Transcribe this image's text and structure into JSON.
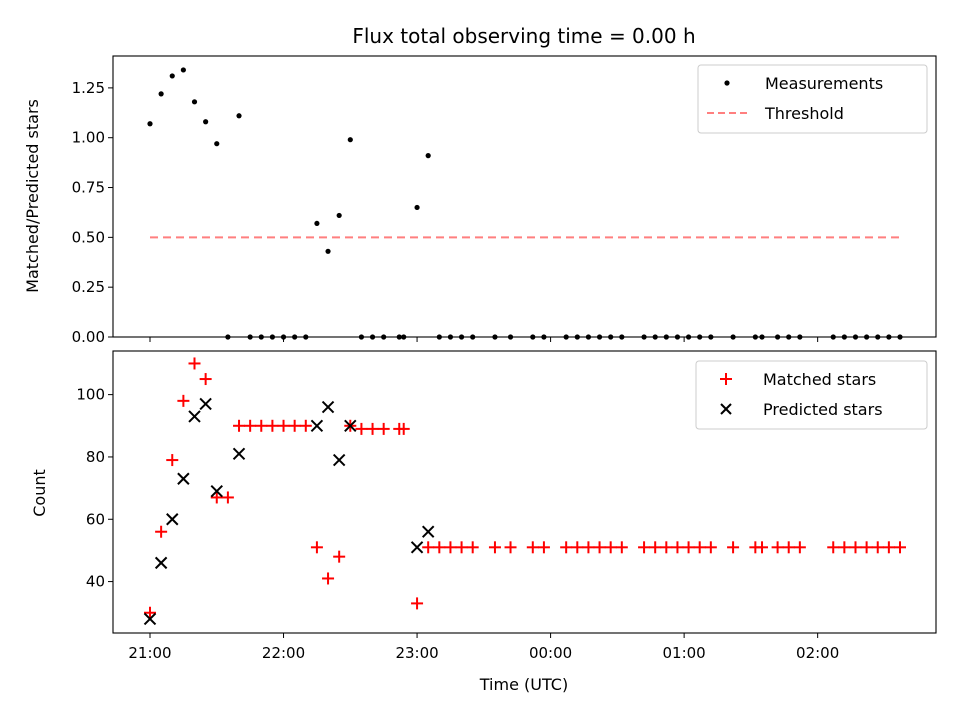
{
  "chart_data": [
    {
      "type": "scatter",
      "title": "Flux total observing time = 0.00 h",
      "ylabel": "Matched/Predicted stars",
      "xlabel": "",
      "ylim": [
        0,
        1.41
      ],
      "yticks": [
        "0.00",
        "0.25",
        "0.50",
        "0.75",
        "1.00",
        "1.25"
      ],
      "ytick_values": [
        0,
        0.25,
        0.5,
        0.75,
        1.0,
        1.25
      ],
      "legend_placement": "upper-right",
      "series": [
        {
          "name": "Measurements",
          "color": "#000000",
          "marker": "dot",
          "points": [
            [
              "21:00",
              1.07
            ],
            [
              "21:05",
              1.22
            ],
            [
              "21:10",
              1.31
            ],
            [
              "21:15",
              1.34
            ],
            [
              "21:20",
              1.18
            ],
            [
              "21:25",
              1.08
            ],
            [
              "21:30",
              0.97
            ],
            [
              "21:35",
              0.0
            ],
            [
              "21:40",
              1.11
            ],
            [
              "21:45",
              0.0
            ],
            [
              "21:50",
              0.0
            ],
            [
              "21:55",
              0.0
            ],
            [
              "22:00",
              0.0
            ],
            [
              "22:05",
              0.0
            ],
            [
              "22:10",
              0.0
            ],
            [
              "22:15",
              0.57
            ],
            [
              "22:20",
              0.43
            ],
            [
              "22:25",
              0.61
            ],
            [
              "22:30",
              0.99
            ],
            [
              "22:35",
              0.0
            ],
            [
              "22:40",
              0.0
            ],
            [
              "22:45",
              0.0
            ],
            [
              "22:52",
              0.0
            ],
            [
              "22:54",
              0.0
            ],
            [
              "23:00",
              0.65
            ],
            [
              "23:05",
              0.91
            ],
            [
              "23:10",
              0.0
            ],
            [
              "23:15",
              0.0
            ],
            [
              "23:20",
              0.0
            ],
            [
              "23:25",
              0.0
            ],
            [
              "23:35",
              0.0
            ],
            [
              "23:42",
              0.0
            ],
            [
              "23:52",
              0.0
            ],
            [
              "23:57",
              0.0
            ],
            [
              "00:07",
              0.0
            ],
            [
              "00:12",
              0.0
            ],
            [
              "00:17",
              0.0
            ],
            [
              "00:22",
              0.0
            ],
            [
              "00:27",
              0.0
            ],
            [
              "00:32",
              0.0
            ],
            [
              "00:42",
              0.0
            ],
            [
              "00:47",
              0.0
            ],
            [
              "00:52",
              0.0
            ],
            [
              "00:57",
              0.0
            ],
            [
              "01:02",
              0.0
            ],
            [
              "01:07",
              0.0
            ],
            [
              "01:12",
              0.0
            ],
            [
              "01:22",
              0.0
            ],
            [
              "01:32",
              0.0
            ],
            [
              "01:35",
              0.0
            ],
            [
              "01:42",
              0.0
            ],
            [
              "01:47",
              0.0
            ],
            [
              "01:52",
              0.0
            ],
            [
              "02:07",
              0.0
            ],
            [
              "02:12",
              0.0
            ],
            [
              "02:17",
              0.0
            ],
            [
              "02:22",
              0.0
            ],
            [
              "02:27",
              0.0
            ],
            [
              "02:32",
              0.0
            ],
            [
              "02:37",
              0.0
            ]
          ]
        },
        {
          "name": "Threshold",
          "color": "#ff7f7f",
          "style": "dashed",
          "points": [
            [
              "21:00",
              0.5
            ],
            [
              "02:37",
              0.5
            ]
          ]
        }
      ]
    },
    {
      "type": "scatter",
      "title": "",
      "ylabel": "Count",
      "xlabel": "Time (UTC)",
      "ylim": [
        23.5,
        114
      ],
      "yticks": [
        "40",
        "60",
        "80",
        "100"
      ],
      "ytick_values": [
        40,
        60,
        80,
        100
      ],
      "xticks": [
        "21:00",
        "22:00",
        "23:00",
        "00:00",
        "01:00",
        "02:00"
      ],
      "xtick_values": [
        "21:00",
        "22:00",
        "23:00",
        "00:00",
        "01:00",
        "02:00"
      ],
      "legend_placement": "upper-right",
      "series": [
        {
          "name": "Matched stars",
          "color": "#ff0000",
          "marker": "plus",
          "points": [
            [
              "21:00",
              30
            ],
            [
              "21:05",
              56
            ],
            [
              "21:10",
              79
            ],
            [
              "21:15",
              98
            ],
            [
              "21:20",
              110
            ],
            [
              "21:25",
              105
            ],
            [
              "21:30",
              67
            ],
            [
              "21:35",
              67
            ],
            [
              "21:40",
              90
            ],
            [
              "21:45",
              90
            ],
            [
              "21:50",
              90
            ],
            [
              "21:55",
              90
            ],
            [
              "22:00",
              90
            ],
            [
              "22:05",
              90
            ],
            [
              "22:10",
              90
            ],
            [
              "22:15",
              51
            ],
            [
              "22:20",
              41
            ],
            [
              "22:25",
              48
            ],
            [
              "22:30",
              90
            ],
            [
              "22:35",
              89
            ],
            [
              "22:40",
              89
            ],
            [
              "22:45",
              89
            ],
            [
              "22:52",
              89
            ],
            [
              "22:54",
              89
            ],
            [
              "23:00",
              33
            ],
            [
              "23:05",
              51
            ],
            [
              "23:10",
              51
            ],
            [
              "23:15",
              51
            ],
            [
              "23:20",
              51
            ],
            [
              "23:25",
              51
            ],
            [
              "23:35",
              51
            ],
            [
              "23:42",
              51
            ],
            [
              "23:52",
              51
            ],
            [
              "23:57",
              51
            ],
            [
              "00:07",
              51
            ],
            [
              "00:12",
              51
            ],
            [
              "00:17",
              51
            ],
            [
              "00:22",
              51
            ],
            [
              "00:27",
              51
            ],
            [
              "00:32",
              51
            ],
            [
              "00:42",
              51
            ],
            [
              "00:47",
              51
            ],
            [
              "00:52",
              51
            ],
            [
              "00:57",
              51
            ],
            [
              "01:02",
              51
            ],
            [
              "01:07",
              51
            ],
            [
              "01:12",
              51
            ],
            [
              "01:22",
              51
            ],
            [
              "01:32",
              51
            ],
            [
              "01:35",
              51
            ],
            [
              "01:42",
              51
            ],
            [
              "01:47",
              51
            ],
            [
              "01:52",
              51
            ],
            [
              "02:07",
              51
            ],
            [
              "02:12",
              51
            ],
            [
              "02:17",
              51
            ],
            [
              "02:22",
              51
            ],
            [
              "02:27",
              51
            ],
            [
              "02:32",
              51
            ],
            [
              "02:37",
              51
            ]
          ]
        },
        {
          "name": "Predicted stars",
          "color": "#000000",
          "marker": "x",
          "points": [
            [
              "21:00",
              28
            ],
            [
              "21:05",
              46
            ],
            [
              "21:10",
              60
            ],
            [
              "21:15",
              73
            ],
            [
              "21:20",
              93
            ],
            [
              "21:25",
              97
            ],
            [
              "21:30",
              69
            ],
            [
              "21:40",
              81
            ],
            [
              "22:15",
              90
            ],
            [
              "22:20",
              96
            ],
            [
              "22:25",
              79
            ],
            [
              "22:30",
              90
            ],
            [
              "23:00",
              51
            ],
            [
              "23:05",
              56
            ]
          ]
        }
      ]
    }
  ]
}
